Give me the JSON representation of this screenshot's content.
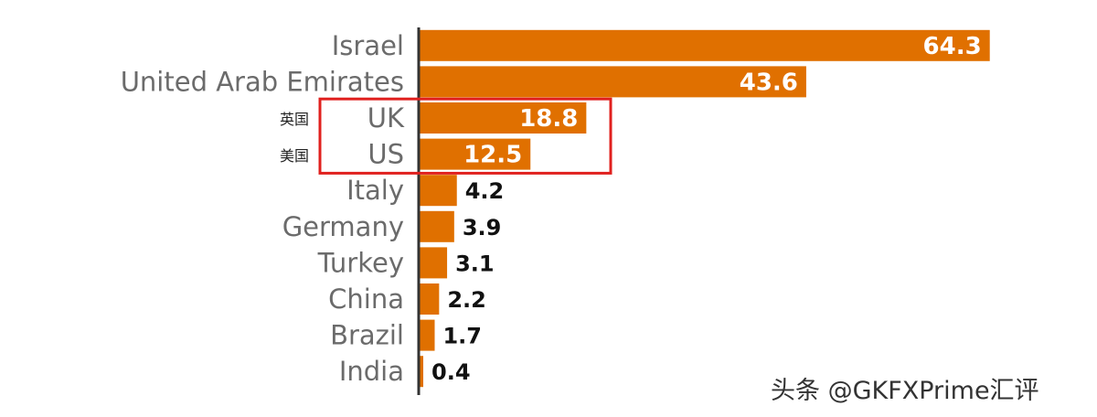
{
  "chart_data": {
    "type": "bar",
    "orientation": "horizontal",
    "categories": [
      "Israel",
      "United Arab Emirates",
      "UK",
      "US",
      "Italy",
      "Germany",
      "Turkey",
      "China",
      "Brazil",
      "India"
    ],
    "values": [
      64.3,
      43.6,
      18.8,
      12.5,
      4.2,
      3.9,
      3.1,
      2.2,
      1.7,
      0.4
    ],
    "value_labels": [
      "64.3",
      "43.6",
      "18.8",
      "12.5",
      "4.2",
      "3.9",
      "3.1",
      "2.2",
      "1.7",
      "0.4"
    ],
    "xlim": [
      0,
      66
    ],
    "bar_color": "#e07000",
    "highlight_color": "#e0201e",
    "highlighted_categories": [
      "UK",
      "US"
    ],
    "annotations": {
      "UK": "英国",
      "US": "美国"
    },
    "grid": false,
    "legend": "none"
  },
  "watermark": "头条 @GKFXPrime汇评"
}
